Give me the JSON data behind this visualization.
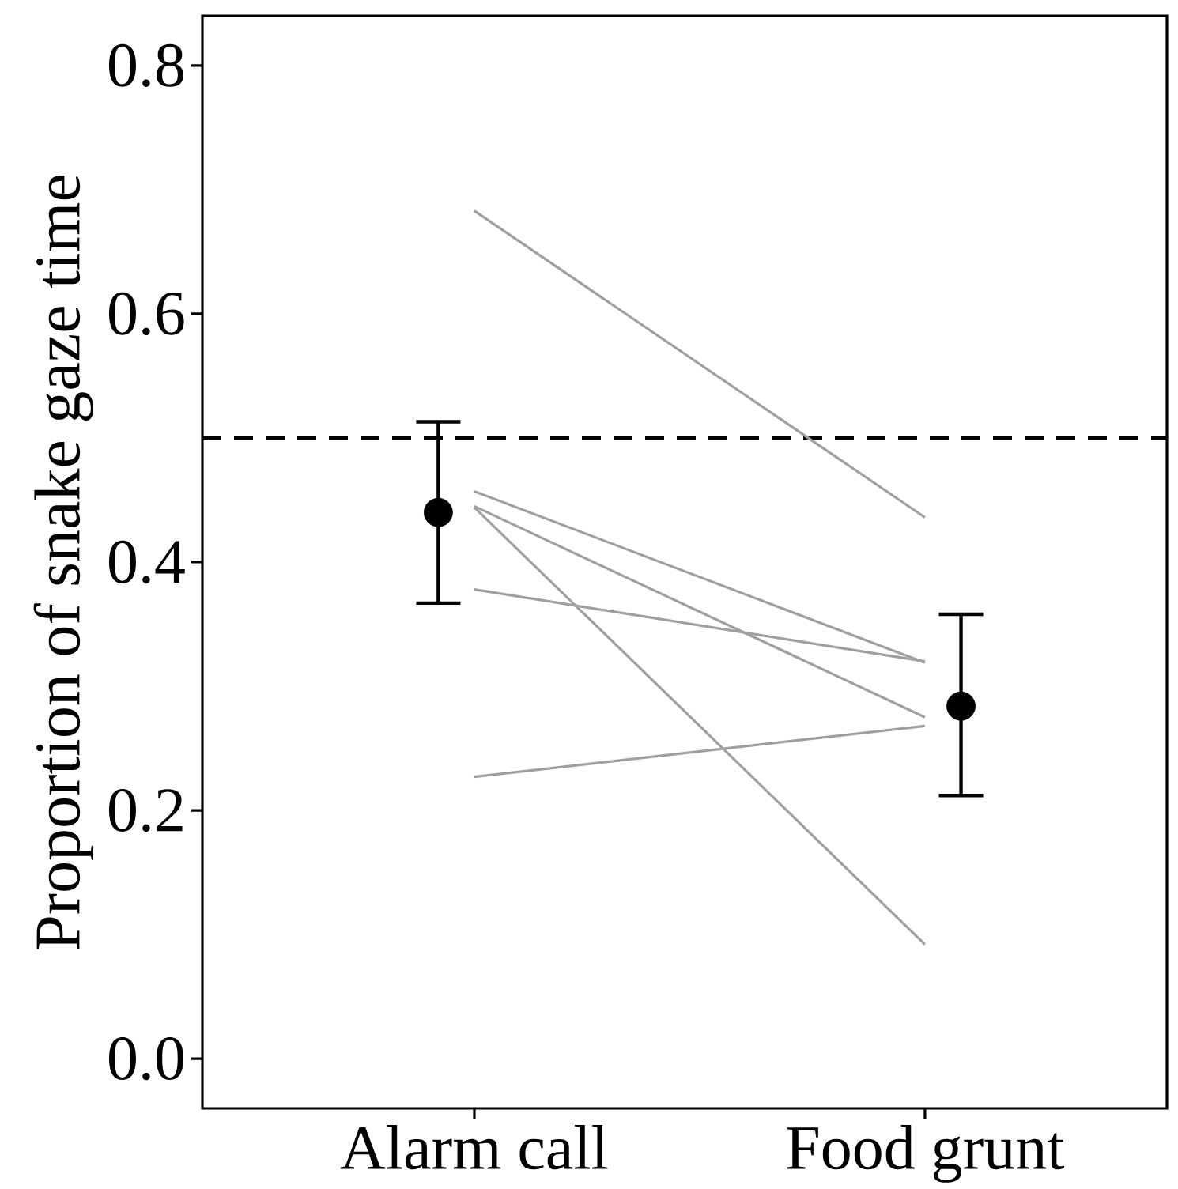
{
  "chart_data": {
    "type": "line",
    "ylabel": "Proportion of snake gaze time",
    "categories": [
      "Alarm call",
      "Food grunt"
    ],
    "ylim": [
      -0.04,
      0.84
    ],
    "yticks": [
      {
        "value": 0,
        "label": "0.0"
      },
      0.2,
      0.4,
      0.6,
      0.8
    ],
    "series": [
      {
        "type": "line",
        "color": "#a0a0a0",
        "values": [
          0.683,
          0.436
        ]
      },
      {
        "type": "line",
        "color": "#a0a0a0",
        "values": [
          0.457,
          0.319
        ]
      },
      {
        "type": "line",
        "color": "#a0a0a0",
        "values": [
          0.445,
          0.275
        ]
      },
      {
        "type": "line",
        "color": "#a0a0a0",
        "values": [
          0.444,
          0.092
        ]
      },
      {
        "type": "line",
        "color": "#a0a0a0",
        "values": [
          0.378,
          0.32
        ]
      },
      {
        "type": "line",
        "color": "#a0a0a0",
        "values": [
          0.227,
          0.268
        ]
      },
      {
        "type": "scatter",
        "color": "#000000",
        "marker": "circle",
        "values": [
          0.44,
          0.284
        ],
        "errors": [
          [
            0.367,
            0.513
          ],
          [
            0.212,
            0.358
          ]
        ]
      }
    ],
    "ref_lines": [
      {
        "axis": "y",
        "value": 0.5,
        "color": "#000000",
        "line_style": "dashed"
      }
    ]
  }
}
